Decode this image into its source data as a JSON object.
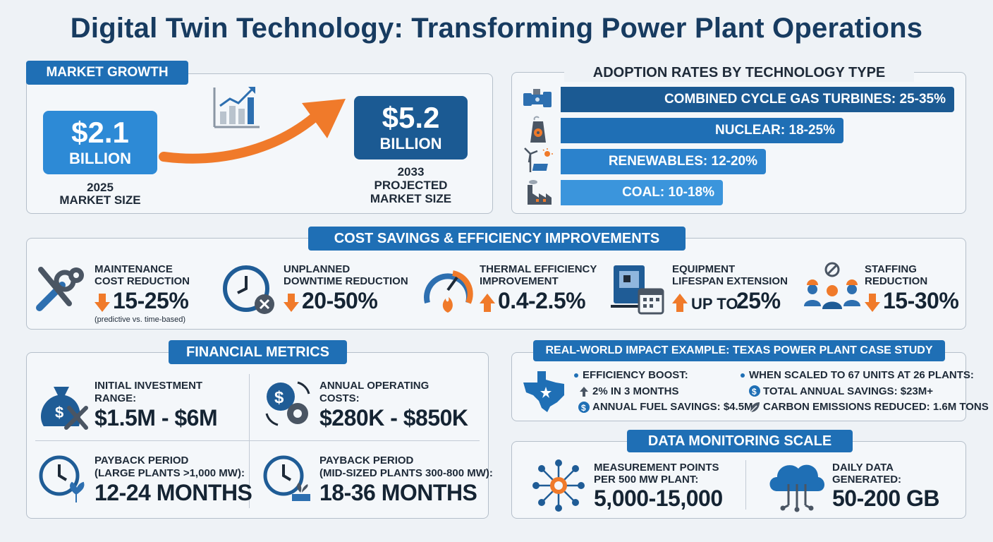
{
  "title": "Digital Twin Technology: Transforming Power Plant Operations",
  "market": {
    "heading": "MARKET GROWTH",
    "current_value": "$2.1",
    "current_unit": "BILLION",
    "current_year": "2025",
    "current_label": "MARKET SIZE",
    "projected_value": "$5.2",
    "projected_unit": "BILLION",
    "projected_year": "2033",
    "projected_label1": "PROJECTED",
    "projected_label2": "MARKET SIZE"
  },
  "adoption": {
    "heading": "ADOPTION RATES BY TECHNOLOGY TYPE",
    "bars": [
      {
        "label": "COMBINED CYCLE GAS TURBINES: 25-35%",
        "icon": "turbine-icon"
      },
      {
        "label": "NUCLEAR: 18-25%",
        "icon": "nuclear-plant-icon"
      },
      {
        "label": "RENEWABLES: 12-20%",
        "icon": "renewables-icon"
      },
      {
        "label": "COAL: 10-18%",
        "icon": "coal-plant-icon"
      }
    ]
  },
  "savings": {
    "heading": "COST SAVINGS & EFFICIENCY IMPROVEMENTS",
    "items": [
      {
        "line1": "MAINTENANCE",
        "line2": "COST REDUCTION",
        "value": "15-25%",
        "note": "(predictive vs. time-based)",
        "direction": "down"
      },
      {
        "line1": "UNPLANNED",
        "line2": "DOWNTIME REDUCTION",
        "value": "20-50%",
        "direction": "down"
      },
      {
        "line1": "THERMAL EFFICIENCY",
        "line2": "IMPROVEMENT",
        "value": "0.4-2.5%",
        "direction": "up"
      },
      {
        "line1": "EQUIPMENT",
        "line2": "LIFESPAN EXTENSION",
        "value_prefix": "UP TO",
        "value": "25%",
        "direction": "up"
      },
      {
        "line1": "STAFFING",
        "line2": "REDUCTION",
        "value": "15-30%",
        "direction": "down"
      }
    ]
  },
  "financial": {
    "heading": "FINANCIAL METRICS",
    "items": [
      {
        "line1": "INITIAL INVESTMENT",
        "line2": "RANGE:",
        "value": "$1.5M - $6M"
      },
      {
        "line1": "ANNUAL OPERATING",
        "line2": "COSTS:",
        "value": "$280K - $850K"
      },
      {
        "line1": "PAYBACK PERIOD",
        "line2": "(LARGE PLANTS >1,000 MW):",
        "value": "12-24 MONTHS"
      },
      {
        "line1": "PAYBACK PERIOD",
        "line2": "(MID-SIZED PLANTS 300-800 MW):",
        "value": "18-36 MONTHS"
      }
    ]
  },
  "case_study": {
    "heading": "REAL-WORLD IMPACT EXAMPLE: TEXAS POWER PLANT CASE STUDY",
    "left": [
      "EFFICIENCY BOOST:",
      "2% IN 3 MONTHS",
      "ANNUAL FUEL SAVINGS: $4.5M"
    ],
    "right": [
      "WHEN SCALED TO 67 UNITS AT 26 PLANTS:",
      "TOTAL ANNUAL SAVINGS: $23M+",
      "CARBON EMISSIONS REDUCED: 1.6M TONS"
    ]
  },
  "monitoring": {
    "heading": "DATA MONITORING SCALE",
    "points_line1": "MEASUREMENT POINTS",
    "points_line2": "PER 500 MW PLANT:",
    "points_value": "5,000-15,000",
    "data_line1": "DAILY DATA",
    "data_line2": "GENERATED:",
    "data_value": "50-200 GB"
  },
  "colors": {
    "primary": "#1f6fb5",
    "dark": "#1b5a93",
    "orange": "#f07a2a",
    "navy": "#173b60"
  }
}
